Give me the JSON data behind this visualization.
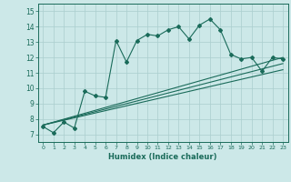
{
  "title": "",
  "xlabel": "Humidex (Indice chaleur)",
  "bg_color": "#cce8e8",
  "line_color": "#1a6b5a",
  "grid_color": "#aacece",
  "xlim": [
    -0.5,
    23.5
  ],
  "ylim": [
    6.5,
    15.5
  ],
  "yticks": [
    7,
    8,
    9,
    10,
    11,
    12,
    13,
    14,
    15
  ],
  "xticks": [
    0,
    1,
    2,
    3,
    4,
    5,
    6,
    7,
    8,
    9,
    10,
    11,
    12,
    13,
    14,
    15,
    16,
    17,
    18,
    19,
    20,
    21,
    22,
    23
  ],
  "humidex_data_x": [
    0,
    1,
    2,
    3,
    4,
    5,
    6,
    7,
    8,
    9,
    10,
    11,
    12,
    13,
    14,
    15,
    16,
    17,
    18,
    19,
    20,
    21,
    22,
    23
  ],
  "humidex_data_y": [
    7.5,
    7.1,
    7.8,
    7.4,
    9.8,
    9.5,
    9.4,
    13.1,
    11.7,
    13.1,
    13.5,
    13.4,
    13.8,
    14.0,
    13.2,
    14.1,
    14.5,
    13.8,
    12.2,
    11.9,
    12.0,
    11.1,
    12.0,
    11.9
  ],
  "line1_x": [
    0,
    23
  ],
  "line1_y": [
    7.6,
    12.0
  ],
  "line2_x": [
    0,
    23
  ],
  "line2_y": [
    7.6,
    11.6
  ],
  "line3_x": [
    0,
    23
  ],
  "line3_y": [
    7.6,
    11.2
  ]
}
